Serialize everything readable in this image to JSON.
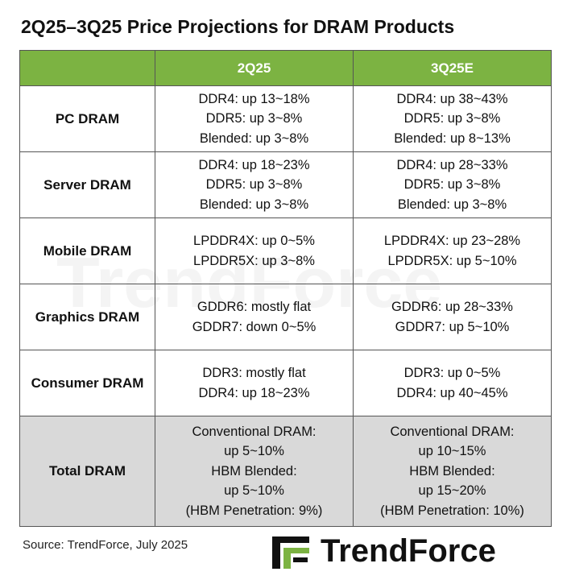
{
  "header": {
    "title": "2Q25–3Q25 Price Projections  for DRAM Products"
  },
  "table": {
    "columns": [
      "",
      "2Q25",
      "3Q25E"
    ],
    "rows": [
      {
        "label": "PC DRAM",
        "cells": [
          [
            "DDR4: up 13~18%",
            "DDR5: up 3~8%",
            "Blended: up 3~8%"
          ],
          [
            "DDR4: up 38~43%",
            "DDR5: up 3~8%",
            "Blended: up 8~13%"
          ]
        ]
      },
      {
        "label": "Server DRAM",
        "cells": [
          [
            "DDR4: up 18~23%",
            "DDR5: up 3~8%",
            "Blended: up 3~8%"
          ],
          [
            "DDR4: up 28~33%",
            "DDR5: up 3~8%",
            "Blended: up 3~8%"
          ]
        ]
      },
      {
        "label": "Mobile DRAM",
        "cells": [
          [
            "LPDDR4X: up 0~5%",
            "LPDDR5X: up 3~8%"
          ],
          [
            "LPDDR4X: up 23~28%",
            "LPDDR5X: up 5~10%"
          ]
        ]
      },
      {
        "label": "Graphics DRAM",
        "cells": [
          [
            "GDDR6: mostly flat",
            "GDDR7: down 0~5%"
          ],
          [
            "GDDR6: up 28~33%",
            "GDDR7: up 5~10%"
          ]
        ]
      },
      {
        "label": "Consumer DRAM",
        "cells": [
          [
            "DDR3: mostly flat",
            "DDR4: up 18~23%"
          ],
          [
            "DDR3: up 0~5%",
            "DDR4: up 40~45%"
          ]
        ]
      },
      {
        "label": "Total DRAM",
        "cells": [
          [
            "Conventional DRAM:",
            "up 5~10%",
            "HBM Blended:",
            "up 5~10%",
            "(HBM Penetration: 9%)"
          ],
          [
            "Conventional DRAM:",
            "up 10~15%",
            "HBM Blended:",
            "up 15~20%",
            "(HBM Penetration: 10%)"
          ]
        ]
      }
    ]
  },
  "footer": {
    "source": "Source: TrendForce, July 2025",
    "logo": "TrendForce"
  },
  "watermark": "TrendForce"
}
